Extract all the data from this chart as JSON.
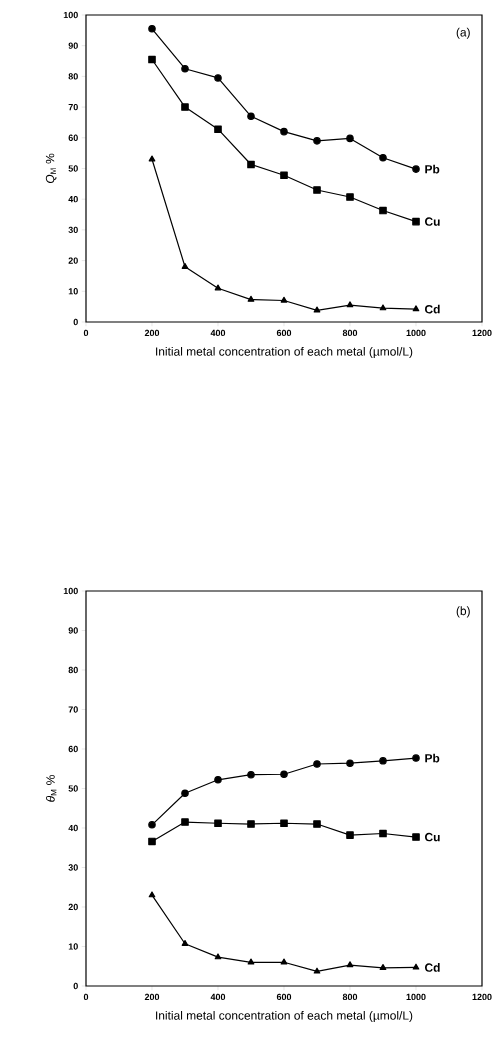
{
  "chart_data": [
    {
      "type": "line",
      "xlabel": "Initial metal concentration of each metal (µmol/L)",
      "ylabel": "*Q*$_{M}$ %",
      "annotations": [
        "(a)"
      ],
      "x": [
        200,
        300,
        400,
        500,
        600,
        700,
        800,
        900,
        1000
      ],
      "xlim": [
        0,
        1200
      ],
      "xticks": [
        0,
        200,
        400,
        600,
        800,
        1000,
        1200
      ],
      "ylim": [
        0,
        100
      ],
      "yticks": [
        0,
        10,
        20,
        30,
        40,
        50,
        60,
        70,
        80,
        90,
        100
      ],
      "grid": false,
      "line_style": "solid",
      "series": [
        {
          "name": "Pb",
          "color": "#000000",
          "marker": "circle",
          "values": [
            95.5,
            82.5,
            79.5,
            67,
            62,
            59,
            59.8,
            53.5,
            49.8
          ]
        },
        {
          "name": "Cu",
          "color": "#000000",
          "marker": "square",
          "values": [
            85.5,
            70,
            62.8,
            51.3,
            47.8,
            43,
            40.7,
            36.3,
            32.7
          ]
        },
        {
          "name": "Cd",
          "color": "#000000",
          "marker": "triangle",
          "values": [
            53,
            18,
            11,
            7.3,
            7,
            3.8,
            5.5,
            4.5,
            4.2
          ]
        }
      ]
    },
    {
      "type": "line",
      "xlabel": "Initial metal concentration of each metal (µmol/L)",
      "ylabel": "*θ*$_{M}$ %",
      "annotations": [
        "(b)"
      ],
      "x": [
        200,
        300,
        400,
        500,
        600,
        700,
        800,
        900,
        1000
      ],
      "xlim": [
        0,
        1200
      ],
      "xticks": [
        0,
        200,
        400,
        600,
        800,
        1000,
        1200
      ],
      "ylim": [
        0,
        100
      ],
      "yticks": [
        0,
        10,
        20,
        30,
        40,
        50,
        60,
        70,
        80,
        90,
        100
      ],
      "grid": false,
      "line_style": "solid",
      "series": [
        {
          "name": "Pb",
          "color": "#000000",
          "marker": "circle",
          "values": [
            40.8,
            48.8,
            52.2,
            53.5,
            53.6,
            56.2,
            56.4,
            57,
            57.7
          ]
        },
        {
          "name": "Cu",
          "color": "#000000",
          "marker": "square",
          "values": [
            36.6,
            41.5,
            41.2,
            41,
            41.2,
            41,
            38.2,
            38.6,
            37.7
          ]
        },
        {
          "name": "Cd",
          "color": "#000000",
          "marker": "triangle",
          "values": [
            23,
            10.7,
            7.3,
            6,
            6,
            3.7,
            5.3,
            4.6,
            4.7
          ]
        }
      ]
    }
  ]
}
